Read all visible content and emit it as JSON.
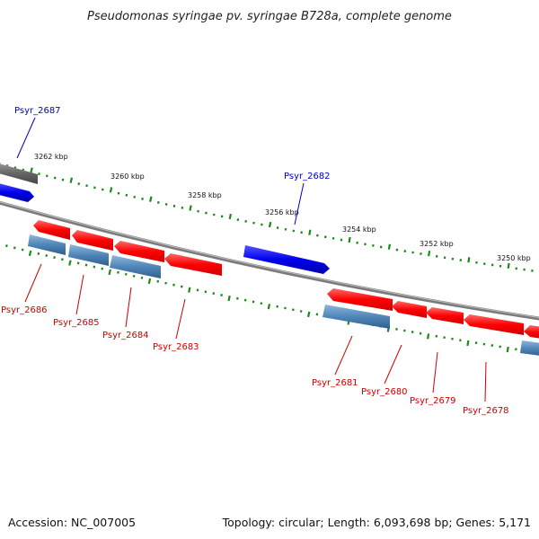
{
  "title": "Pseudomonas syringae pv. syringae B728a, complete genome",
  "footer": {
    "accession": "Accession: NC_007005",
    "summary": "Topology: circular; Length: 6,093,698 bp; Genes: 5,171"
  },
  "colors": {
    "forward_cds": "#1a1aff",
    "reverse_cds": "#ff0000",
    "reverse_gene": "#4f86b8",
    "forward_gene": "#6e6e6e",
    "backbone": "#7a7a7a",
    "ticks": "#1a8a1a",
    "forward_label": "#0000cc",
    "reverse_label": "#cc0000"
  },
  "kbp_ticks": [
    "3262 kbp",
    "3260 kbp",
    "3258 kbp",
    "3256 kbp",
    "3254 kbp",
    "3252 kbp",
    "3250 kbp"
  ],
  "forward_genes": [
    {
      "id": "Psyr_2687",
      "label": "Psyr_2687"
    },
    {
      "id": "Psyr_2682",
      "label": "Psyr_2682"
    }
  ],
  "reverse_genes": [
    {
      "id": "Psyr_2686",
      "label": "Psyr_2686"
    },
    {
      "id": "Psyr_2685",
      "label": "Psyr_2685"
    },
    {
      "id": "Psyr_2684",
      "label": "Psyr_2684"
    },
    {
      "id": "Psyr_2683",
      "label": "Psyr_2683"
    },
    {
      "id": "Psyr_2681",
      "label": "Psyr_2681"
    },
    {
      "id": "Psyr_2680",
      "label": "Psyr_2680"
    },
    {
      "id": "Psyr_2679",
      "label": "Psyr_2679"
    },
    {
      "id": "Psyr_2678",
      "label": "Psyr_2678"
    }
  ]
}
